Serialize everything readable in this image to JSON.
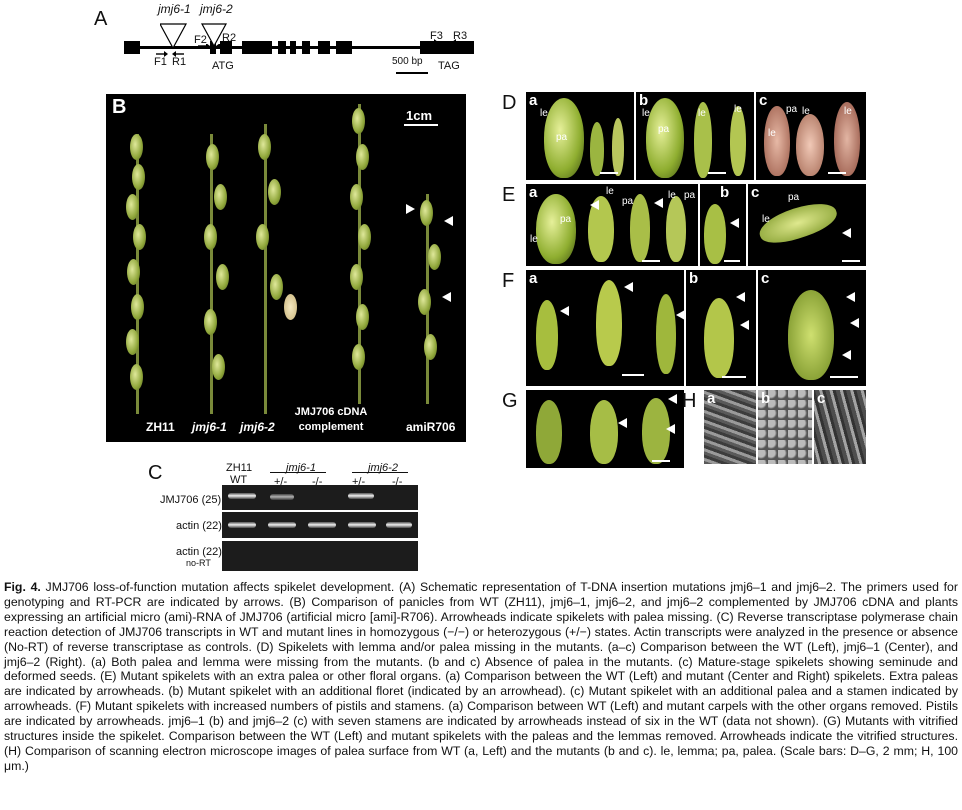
{
  "panel_a": {
    "label": "A",
    "insert1": "jmj6-1",
    "insert2": "jmj6-2",
    "primers": {
      "f1": "F1",
      "r1": "R1",
      "f2": "F2",
      "r2": "R2",
      "f3": "F3",
      "r3": "R3"
    },
    "atg": "ATG",
    "tag": "TAG",
    "scale": "500 bp"
  },
  "panel_b": {
    "label": "B",
    "scale": "1cm",
    "labels": [
      "ZH11",
      "jmj6-1",
      "jmj6-2",
      "JMJ706 cDNA complement",
      "amiR706"
    ],
    "label_cdna_line1": "JMJ706 cDNA",
    "label_cdna_line2": "complement"
  },
  "panel_c": {
    "label": "C",
    "col_wt_1": "ZH11",
    "col_wt_2": "WT",
    "col_g1": "jmj6-1",
    "col_g2": "jmj6-2",
    "het": "+/-",
    "hom": "-/-",
    "row1": "JMJ706 (25)",
    "row2": "actin (22)",
    "row3": "actin (22)",
    "row3_sub": "no-RT"
  },
  "panel_d": {
    "label": "D",
    "subs": [
      "a",
      "b",
      "c"
    ],
    "le": "le",
    "pa": "pa"
  },
  "panel_e": {
    "label": "E",
    "subs": [
      "a",
      "b",
      "c"
    ],
    "le": "le",
    "pa": "pa"
  },
  "panel_f": {
    "label": "F",
    "subs": [
      "a",
      "b",
      "c"
    ]
  },
  "panel_g": {
    "label": "G"
  },
  "panel_h": {
    "label": "H",
    "subs": [
      "a",
      "b",
      "c"
    ]
  },
  "caption": {
    "fig": "Fig. 4.",
    "text": "JMJ706 loss-of-function mutation affects spikelet development. (A) Schematic representation of T-DNA insertion mutations jmj6–1 and jmj6–2. The primers used for genotyping and RT-PCR are indicated by arrows. (B) Comparison of panicles from WT (ZH11), jmj6–1, jmj6–2, and jmj6–2 complemented by JMJ706 cDNA and plants expressing an artificial micro (ami)-RNA of JMJ706 (artificial micro [ami]-R706). Arrowheads indicate spikelets with palea missing. (C) Reverse transcriptase polymerase chain reaction detection of JMJ706 transcripts in WT and mutant lines in homozygous (−/−) or heterozygous (+/−) states. Actin transcripts were analyzed in the presence or absence (No-RT) of reverse transcriptase as controls. (D) Spikelets with lemma and/or palea missing in the mutants. (a–c) Comparison between the WT (Left), jmj6–1 (Center), and jmj6–2 (Right). (a) Both palea and lemma were missing from the mutants. (b and c) Absence of palea in the mutants. (c) Mature-stage spikelets showing seminude and deformed seeds. (E) Mutant spikelets with an extra palea or other floral organs. (a) Comparison between the WT (Left) and mutant (Center and Right) spikelets. Extra paleas are indicated by arrowheads. (b) Mutant spikelet with an additional floret (indicated by an arrowhead). (c) Mutant spikelet with an additional palea and a stamen indicated by arrowheads. (F) Mutant spikelets with increased numbers of pistils and stamens. (a) Comparison between WT (Left) and mutant carpels with the other organs removed. Pistils are indicated by arrowheads. jmj6–1 (b) and jmj6–2 (c) with seven stamens are indicated by arrowheads instead of six in the WT (data not shown). (G) Mutants with vitrified structures inside the spikelet. Comparison between the WT (Left) and mutant spikelets with the paleas and the lemmas removed. Arrowheads indicate the vitrified structures. (H) Comparison of scanning electron microscope images of palea surface from WT (a, Left) and the mutants (b and c). le, lemma; pa, palea. (Scale bars: D–G, 2 mm; H, 100 μm.)"
  }
}
